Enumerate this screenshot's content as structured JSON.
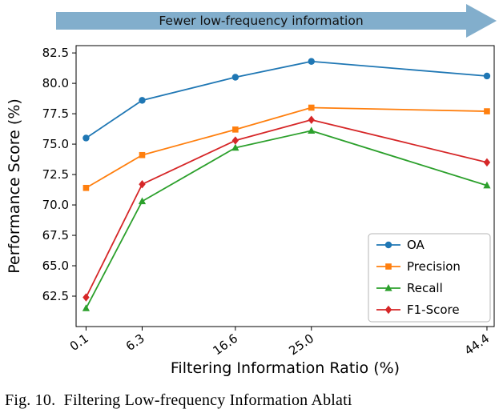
{
  "arrow": {
    "label": "Fewer low-frequency information",
    "color": "#82aecc"
  },
  "caption": "Fig. 10.  Filtering Low-frequency Information Ablati",
  "chart_data": {
    "type": "line",
    "title": "",
    "xlabel": "Filtering Information Ratio (%)",
    "ylabel": "Performance Score (%)",
    "x": [
      0.1,
      6.3,
      16.6,
      25.0,
      44.4
    ],
    "x_tick_labels": [
      "0.1",
      "6.3",
      "16.6",
      "25.0",
      "44.4"
    ],
    "y_ticks": [
      62.5,
      65.0,
      67.5,
      70.0,
      72.5,
      75.0,
      77.5,
      80.0,
      82.5
    ],
    "xlim": [
      -1.0,
      45.2
    ],
    "ylim": [
      60.0,
      83.1
    ],
    "grid": false,
    "legend_position": "lower right",
    "series": [
      {
        "name": "OA",
        "color": "#1f77b4",
        "marker": "circle",
        "values": [
          75.5,
          78.6,
          80.5,
          81.8,
          80.6
        ]
      },
      {
        "name": "Precision",
        "color": "#ff7f0e",
        "marker": "square",
        "values": [
          71.4,
          74.1,
          76.2,
          78.0,
          77.7
        ]
      },
      {
        "name": "Recall",
        "color": "#2ca02c",
        "marker": "triangle",
        "values": [
          61.5,
          70.3,
          74.7,
          76.1,
          71.6
        ]
      },
      {
        "name": "F1-Score",
        "color": "#d62728",
        "marker": "diamond",
        "values": [
          62.4,
          71.7,
          75.3,
          77.0,
          73.5
        ]
      }
    ]
  }
}
